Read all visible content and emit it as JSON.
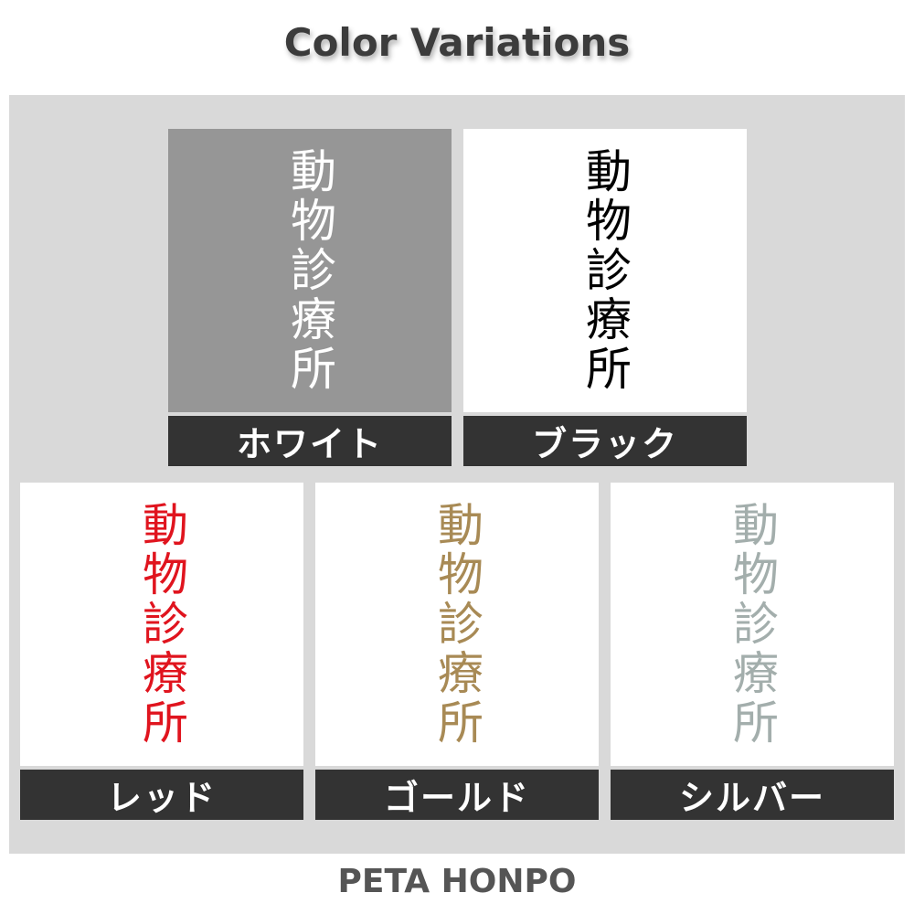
{
  "title": "Color Variations",
  "sample_text": "動物診療所",
  "variations": [
    {
      "label": "ホワイト",
      "text_color": "#ffffff",
      "background": "#969696"
    },
    {
      "label": "ブラック",
      "text_color": "#000000",
      "background": "#ffffff"
    },
    {
      "label": "レッド",
      "text_color": "#e0141e",
      "background": "#ffffff"
    },
    {
      "label": "ゴールド",
      "text_color": "#a88a55",
      "background": "#ffffff"
    },
    {
      "label": "シルバー",
      "text_color": "#a3aeac",
      "background": "#ffffff"
    }
  ],
  "footer": "PETA HONPO"
}
